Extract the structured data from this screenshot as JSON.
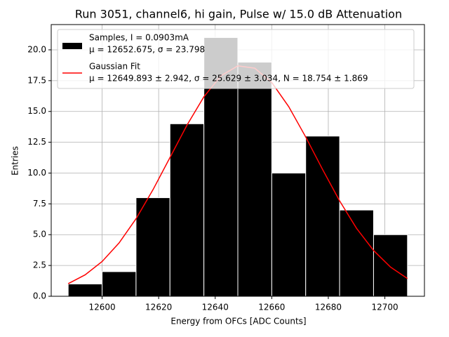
{
  "chart_data": {
    "type": "histogram",
    "title": "Run 3051, channel6, hi gain, Pulse w/ 15.0 dB Attenuation",
    "xlabel": "Energy from OFCs [ADC Counts]",
    "ylabel": "Entries",
    "xlim": [
      12582,
      12714
    ],
    "ylim": [
      0,
      22.05
    ],
    "xticks": [
      12600,
      12620,
      12640,
      12660,
      12680,
      12700
    ],
    "yticks": [
      {
        "value": 0,
        "label": "0.0"
      },
      2.5,
      {
        "value": 5,
        "label": "5.0"
      },
      7.5,
      {
        "value": 10,
        "label": "10.0"
      },
      12.5,
      {
        "value": 15,
        "label": "15.0"
      },
      17.5,
      {
        "value": 20,
        "label": "20.0"
      }
    ],
    "grid": true,
    "legend": "upper left",
    "series": [
      {
        "type": "histogram",
        "name": [
          "Samples, I = 0.0903mA",
          "μ = 12652.675, σ = 23.798"
        ],
        "color": "#000000",
        "edgecolor": "#ffffff",
        "bins": [
          12588,
          12600,
          12612,
          12624,
          12636,
          12648,
          12660,
          12672,
          12684,
          12696,
          12708
        ],
        "values": [
          1,
          2,
          8,
          14,
          21,
          19,
          10,
          13,
          7,
          5
        ]
      },
      {
        "type": "line",
        "name": [
          "Gaussian Fit",
          "μ = 12649.893 ± 2.942, σ = 25.629 ± 3.034, N = 18.754 ± 1.869"
        ],
        "color": "#ff0000",
        "x": [
          12588,
          12594,
          12600,
          12606,
          12612,
          12618,
          12624,
          12630,
          12636,
          12642,
          12648,
          12654,
          12660,
          12666,
          12672,
          12678,
          12684,
          12690,
          12696,
          12702,
          12708
        ],
        "values": [
          1.02,
          1.74,
          2.82,
          4.33,
          6.29,
          8.65,
          11.26,
          13.88,
          16.19,
          17.89,
          18.7,
          18.51,
          17.35,
          15.39,
          12.93,
          10.28,
          7.74,
          5.51,
          3.72,
          2.37,
          1.44
        ]
      }
    ]
  }
}
